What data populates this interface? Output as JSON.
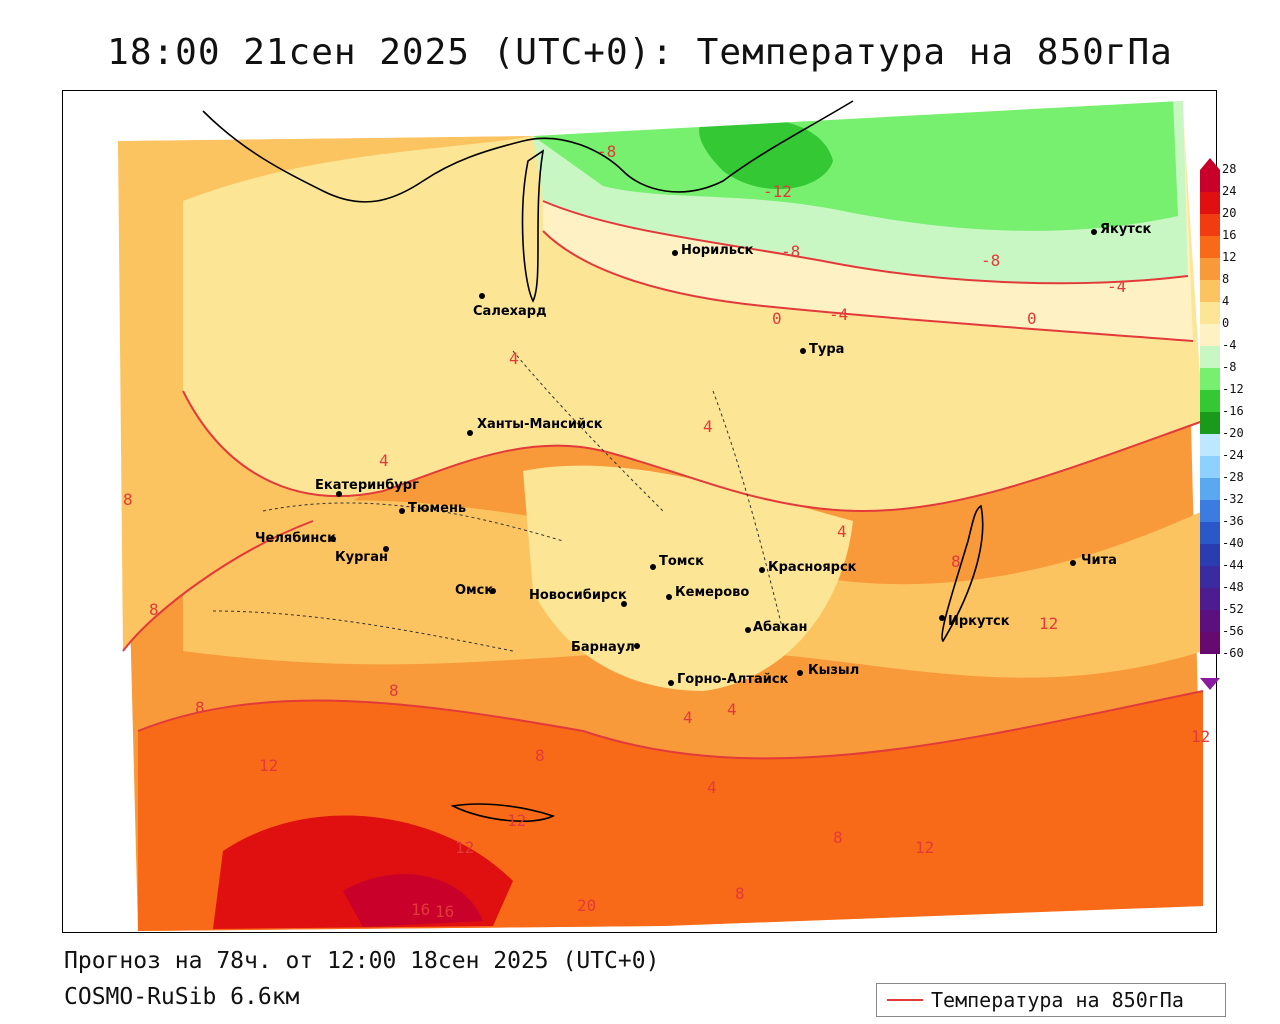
{
  "title": "18:00 21сен 2025 (UTC+0): Температура на 850гПа",
  "footer": {
    "forecast": "Прогноз на 78ч. от 12:00 18сен 2025 (UTC+0)",
    "model": "COSMO-RuSib 6.6км"
  },
  "legend": {
    "label": "Температура на 850гПа",
    "color": "#e23a3a"
  },
  "colorbar": {
    "labels": [
      "28",
      "24",
      "20",
      "16",
      "12",
      "8",
      "4",
      "0",
      "-4",
      "-8",
      "-12",
      "-16",
      "-20",
      "-24",
      "-28",
      "-32",
      "-36",
      "-40",
      "-44",
      "-48",
      "-52",
      "-56",
      "-60"
    ],
    "colors": [
      "#c8002a",
      "#e01010",
      "#f03c10",
      "#f86a18",
      "#f89a3a",
      "#fcc460",
      "#fde596",
      "#fef2c4",
      "#c8f7c4",
      "#76f06e",
      "#34c834",
      "#1a9a1a",
      "#bde8ff",
      "#8ed0ff",
      "#5aa8f0",
      "#3c7ce0",
      "#2a58c8",
      "#2a3cb0",
      "#3a2ca0",
      "#4c1c90",
      "#5c1080",
      "#660a70"
    ]
  },
  "cities": [
    {
      "name": "Салехард"
    },
    {
      "name": "Норильск"
    },
    {
      "name": "Якутск"
    },
    {
      "name": "Тура"
    },
    {
      "name": "Ханты-Мансийск"
    },
    {
      "name": "Екатеринбург"
    },
    {
      "name": "Тюмень"
    },
    {
      "name": "Челябинск"
    },
    {
      "name": "Курган"
    },
    {
      "name": "Омск"
    },
    {
      "name": "Новосибирск"
    },
    {
      "name": "Томск"
    },
    {
      "name": "Кемерово"
    },
    {
      "name": "Красноярск"
    },
    {
      "name": "Барнаул"
    },
    {
      "name": "Абакан"
    },
    {
      "name": "Иркутск"
    },
    {
      "name": "Чита"
    },
    {
      "name": "Горно-Алтайск"
    },
    {
      "name": "Кызыл"
    }
  ],
  "contour_labels": [
    "-8",
    "-12",
    "-8",
    "-8",
    "-4",
    "0",
    "-4",
    "0",
    "4",
    "4",
    "4",
    "4",
    "8",
    "8",
    "8",
    "8",
    "8",
    "8",
    "12",
    "12",
    "12",
    "16",
    "16",
    "20",
    "12",
    "12",
    "8",
    "12",
    "4",
    "4",
    "4",
    "8"
  ]
}
